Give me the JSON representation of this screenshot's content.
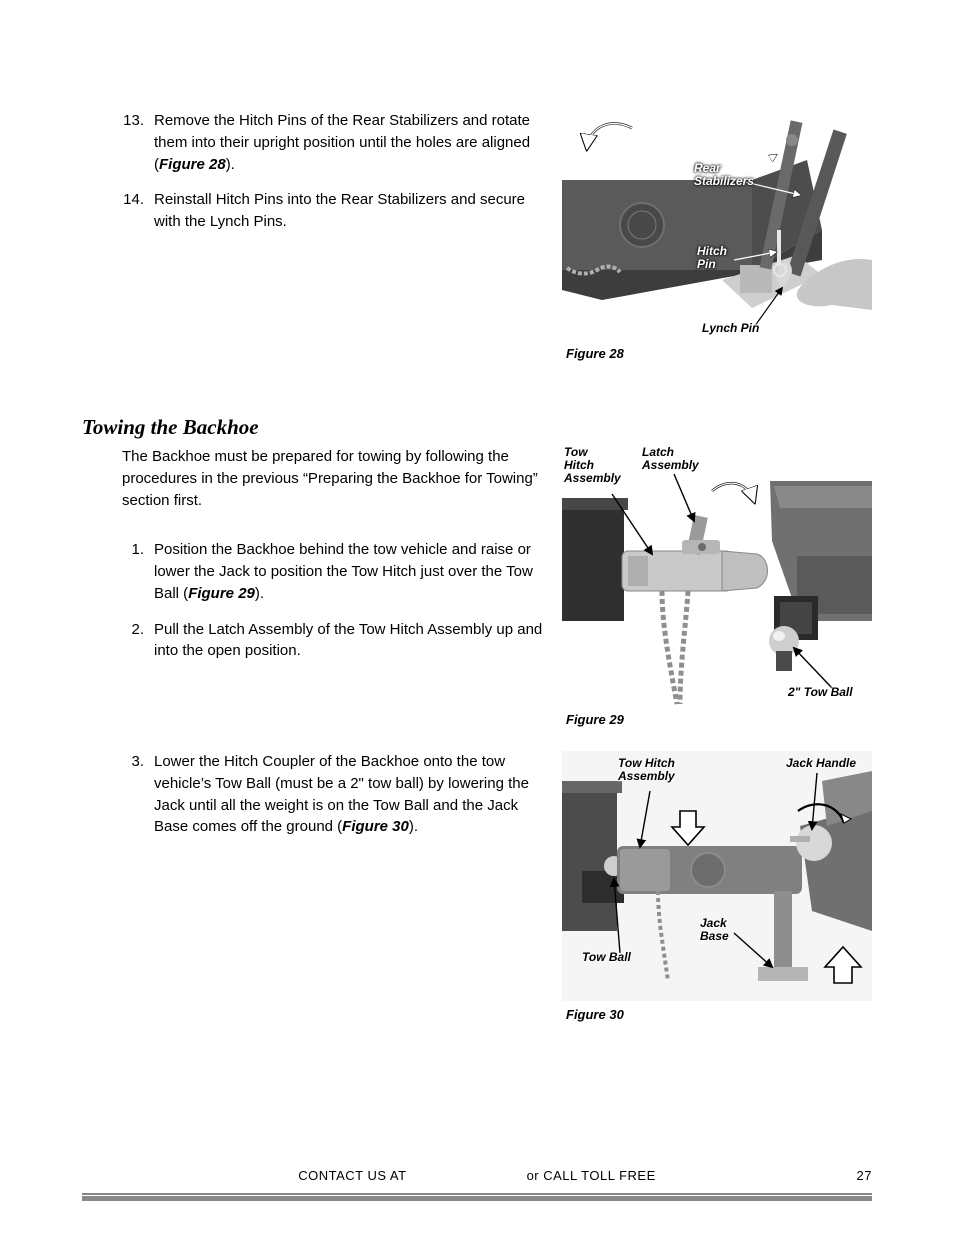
{
  "steps_a": [
    {
      "n": "13.",
      "text_pre": "Remove the Hitch Pins of the Rear Stabilizers and rotate them into their upright position until the holes are aligned (",
      "ref": "Figure 28",
      "text_post": ")."
    },
    {
      "n": "14.",
      "text_pre": "Reinstall Hitch Pins into the Rear Stabilizers and secure with the Lynch Pins.",
      "ref": "",
      "text_post": ""
    }
  ],
  "section_title": "Towing the Backhoe",
  "intro": "The Backhoe must be prepared for towing by following the procedures in the previous “Preparing the Backhoe for Towing” section first.",
  "steps_b": [
    {
      "n": "1.",
      "text_pre": "Position the Backhoe behind the tow vehicle and raise or lower the Jack to position the Tow Hitch just over the Tow Ball (",
      "ref": "Figure 29",
      "text_post": ")."
    },
    {
      "n": "2.",
      "text_pre": "Pull the Latch Assembly of the Tow Hitch Assembly up and into the open position.",
      "ref": "",
      "text_post": ""
    }
  ],
  "steps_c": [
    {
      "n": "3.",
      "text_pre": "Lower the Hitch Coupler of the Backhoe onto the tow vehicle’s Tow Ball (must be a 2\" tow ball) by lowering the Jack until all the weight is on the Tow Ball and the Jack Base comes off the ground (",
      "ref": "Figure 30",
      "text_post": ")."
    }
  ],
  "fig28": {
    "caption": "Figure 28",
    "labels": {
      "rear_stab": "Rear\nStabilizers",
      "hitch_pin": "Hitch\nPin",
      "lynch_pin": "Lynch Pin"
    },
    "colors": {
      "body": "#5a5a5a",
      "dark": "#2c2c2c",
      "light": "#d8d8d8",
      "arm": "#c7c7c7",
      "bg": "#ffffff"
    }
  },
  "fig29": {
    "caption": "Figure 29",
    "labels": {
      "tow_hitch": "Tow\nHitch\nAssembly",
      "latch": "Latch\nAssembly",
      "ball": "2\" Tow Ball"
    },
    "colors": {
      "metal": "#c9c9c9",
      "dark": "#3a3a3a",
      "bumper": "#707070",
      "chain": "#8f8f8f"
    }
  },
  "fig30": {
    "caption": "Figure 30",
    "labels": {
      "tow_hitch": "Tow Hitch\nAssembly",
      "jack_handle": "Jack Handle",
      "tow_ball": "Tow Ball",
      "jack_base": "Jack\nBase"
    },
    "colors": {
      "body": "#808080",
      "dark": "#3a3a3a",
      "light": "#d8d8d8",
      "bg": "#f5f5f5"
    }
  },
  "footer": {
    "left": "CONTACT US AT",
    "right": "or CALL TOLL FREE",
    "page": "27"
  }
}
